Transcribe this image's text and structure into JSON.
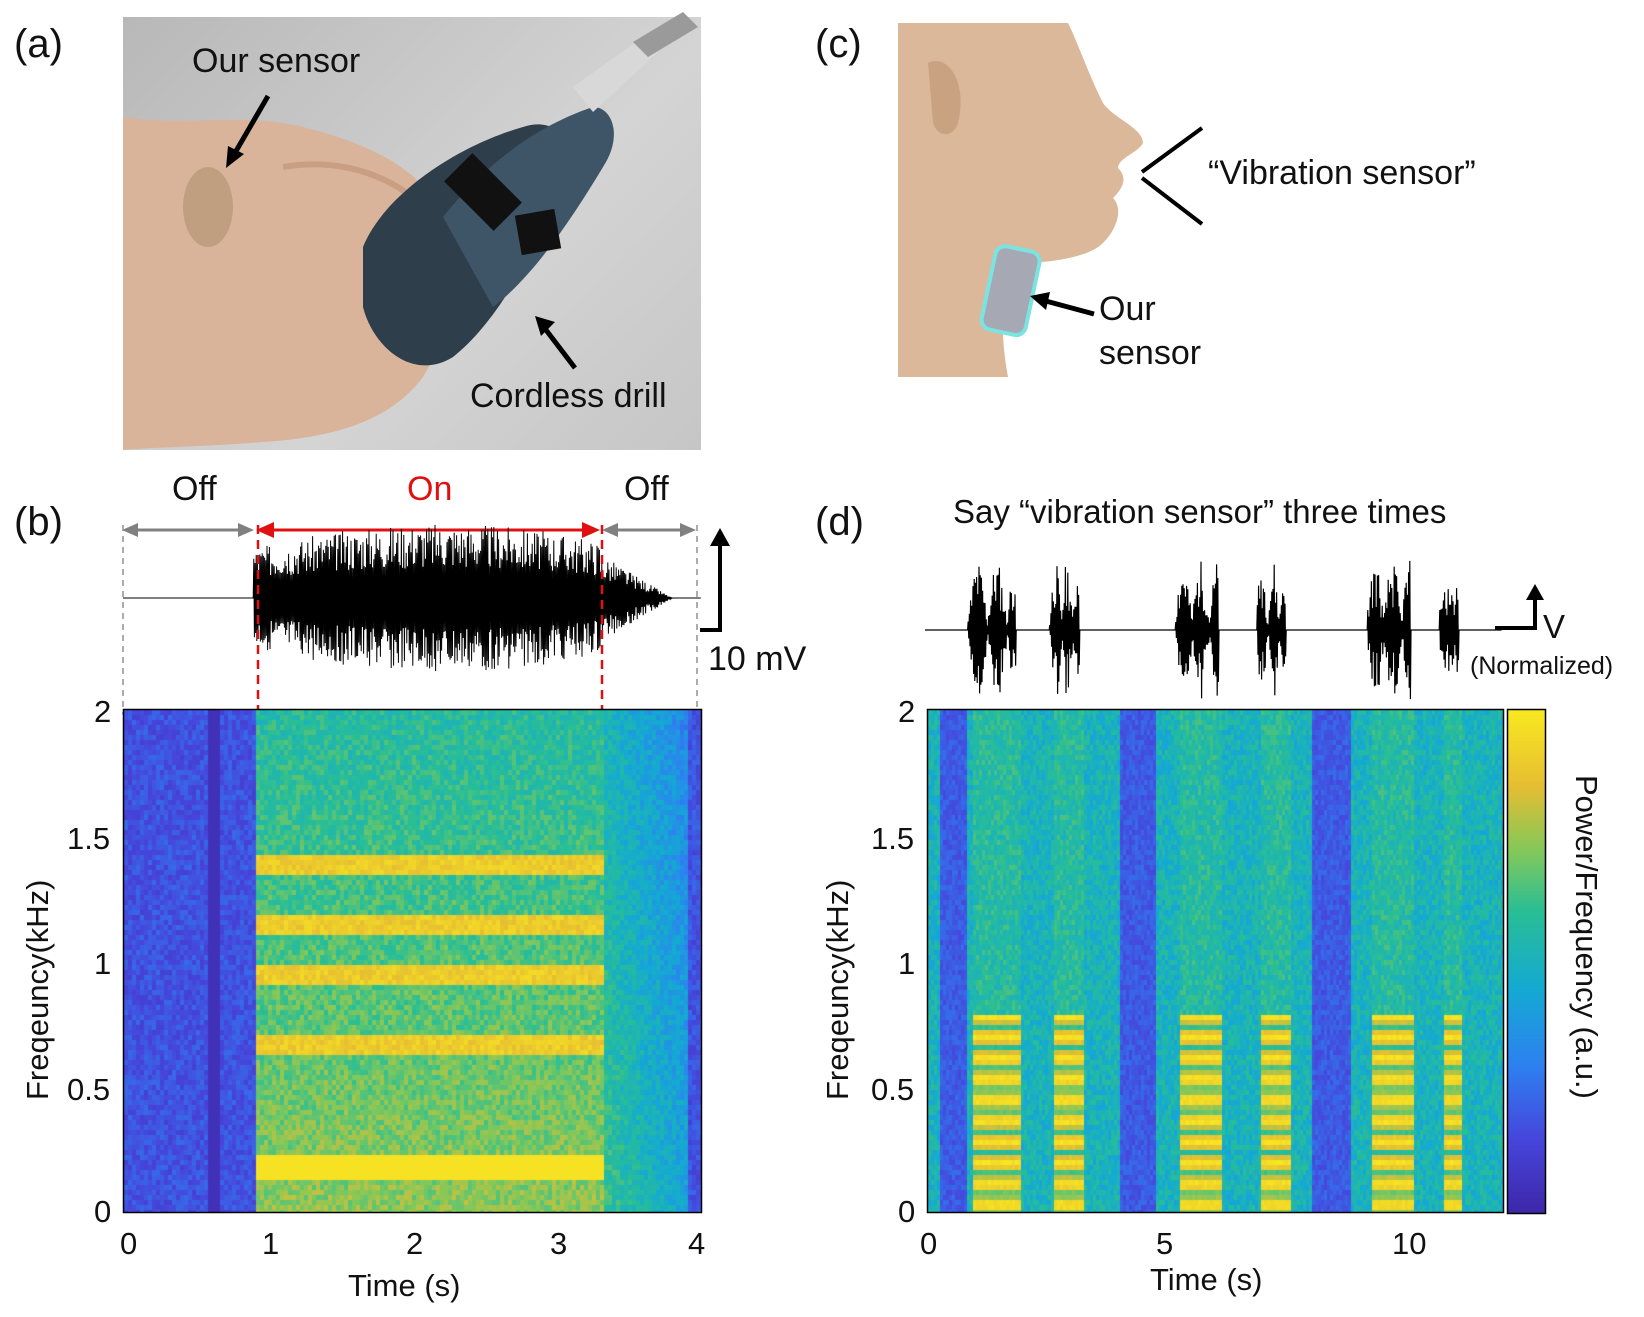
{
  "panels": {
    "a": {
      "label": "(a)",
      "annot_sensor": "Our sensor",
      "annot_drill": "Cordless drill"
    },
    "b": {
      "label": "(b)",
      "state_off_1": "Off",
      "state_on": "On",
      "state_off_2": "Off",
      "scale_bar": "10 mV"
    },
    "c": {
      "label": "(c)",
      "annot_phrase": "“Vibration sensor”",
      "annot_sensor_line1": "Our",
      "annot_sensor_line2": "sensor"
    },
    "d": {
      "label": "(d)",
      "title": "Say “vibration sensor” three times",
      "scale_v": "V",
      "scale_norm": "(Normalized)",
      "colorbar_label": "Power/Frequency (a.u.)"
    }
  },
  "chart_data": [
    {
      "type": "heatmap",
      "panel": "b",
      "xlabel": "Time (s)",
      "ylabel": "Freqeuncy(kHz)",
      "xlim": [
        0,
        4
      ],
      "ylim": [
        0,
        2
      ],
      "xticks": [
        "0",
        "1",
        "2",
        "3",
        "4"
      ],
      "yticks": [
        "0",
        "0.5",
        "1",
        "1.5",
        "2"
      ],
      "on_interval": [
        0.9,
        3.3
      ],
      "harmonic_bands_khz": [
        0.2,
        0.68,
        0.95,
        1.15,
        1.4
      ]
    },
    {
      "type": "heatmap",
      "panel": "d",
      "xlabel": "Time (s)",
      "ylabel": "Freqeuncy(kHz)",
      "xlim": [
        0,
        12
      ],
      "ylim": [
        0,
        2
      ],
      "xticks": [
        "0",
        "5",
        "10"
      ],
      "yticks": [
        "0",
        "0.5",
        "1",
        "1.5",
        "2"
      ],
      "utterance_segments_s": [
        [
          0.9,
          1.9
        ],
        [
          2.6,
          3.2
        ],
        [
          5.2,
          6.1
        ],
        [
          6.9,
          7.5
        ],
        [
          9.2,
          10.1
        ],
        [
          10.7,
          11.1
        ]
      ]
    }
  ],
  "colors": {
    "on_marker": "#e01010",
    "viridis_low": "#3a1f8f",
    "viridis_high": "#f9e820"
  }
}
